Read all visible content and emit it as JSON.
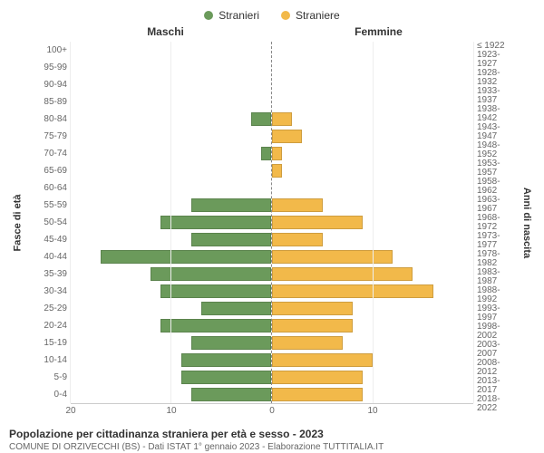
{
  "legend": {
    "male_label": "Stranieri",
    "female_label": "Straniere"
  },
  "headers": {
    "left": "Maschi",
    "right": "Femmine"
  },
  "axis_labels": {
    "left": "Fasce di età",
    "right": "Anni di nascita"
  },
  "colors": {
    "male": "#6b9a5b",
    "female": "#f2b94a",
    "grid": "#eeeeee",
    "centerline": "#888888",
    "text": "#333333",
    "bg": "#ffffff"
  },
  "x": {
    "max": 20,
    "ticks_left": [
      20,
      10,
      0
    ],
    "ticks_right": [
      0,
      10
    ]
  },
  "chart": {
    "type": "population-pyramid",
    "age_bands": [
      "100+",
      "95-99",
      "90-94",
      "85-89",
      "80-84",
      "75-79",
      "70-74",
      "65-69",
      "60-64",
      "55-59",
      "50-54",
      "45-49",
      "40-44",
      "35-39",
      "30-34",
      "25-29",
      "20-24",
      "15-19",
      "10-14",
      "5-9",
      "0-4"
    ],
    "birth_years": [
      "≤ 1922",
      "1923-1927",
      "1928-1932",
      "1933-1937",
      "1938-1942",
      "1943-1947",
      "1948-1952",
      "1953-1957",
      "1958-1962",
      "1963-1967",
      "1968-1972",
      "1973-1977",
      "1978-1982",
      "1983-1987",
      "1988-1992",
      "1993-1997",
      "1998-2002",
      "2003-2007",
      "2008-2012",
      "2013-2017",
      "2018-2022"
    ],
    "male": [
      0,
      0,
      0,
      0,
      2,
      0,
      1,
      0,
      0,
      8,
      11,
      8,
      17,
      12,
      11,
      7,
      11,
      8,
      9,
      9,
      8
    ],
    "female": [
      0,
      0,
      0,
      0,
      2,
      3,
      1,
      1,
      0,
      5,
      9,
      5,
      12,
      14,
      16,
      8,
      8,
      7,
      10,
      9,
      9
    ]
  },
  "footer": {
    "title": "Popolazione per cittadinanza straniera per età e sesso - 2023",
    "sub": "COMUNE DI ORZIVECCHI (BS) - Dati ISTAT 1° gennaio 2023 - Elaborazione TUTTITALIA.IT"
  }
}
